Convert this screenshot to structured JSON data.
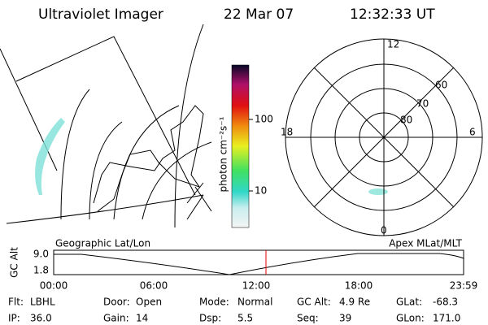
{
  "header": {
    "title": "Ultraviolet Imager",
    "date": "22 Mar 07",
    "time": "12:32:33 UT"
  },
  "colorbar": {
    "label": "photon cm⁻²s⁻¹",
    "ticks": [
      "100",
      "10"
    ]
  },
  "polar": {
    "mlt_labels": [
      "12",
      "18",
      "6",
      "0"
    ],
    "lat_labels": [
      "60",
      "70",
      "80"
    ]
  },
  "timeline": {
    "left_title": "Geographic Lat/Lon",
    "right_title": "Apex MLat/MLT",
    "ylabel": "GC Alt",
    "yticks": [
      "9.0",
      "1.8"
    ],
    "xticks": [
      "00:00",
      "06:00",
      "12:00",
      "18:00",
      "23:59"
    ]
  },
  "info": {
    "rows": [
      [
        [
          "Flt:",
          "LBHL"
        ],
        [
          "Door:",
          "Open"
        ],
        [
          "Mode:",
          "Normal"
        ],
        [
          "GC Alt:",
          "4.9 Re"
        ],
        [
          "GLat:",
          "-68.3"
        ]
      ],
      [
        [
          "IP:",
          "36.0"
        ],
        [
          "Gain:",
          "14"
        ],
        [
          "Dsp:",
          "5.5"
        ],
        [
          "Seq:",
          "39"
        ],
        [
          "GLon:",
          "171.0"
        ]
      ]
    ]
  }
}
